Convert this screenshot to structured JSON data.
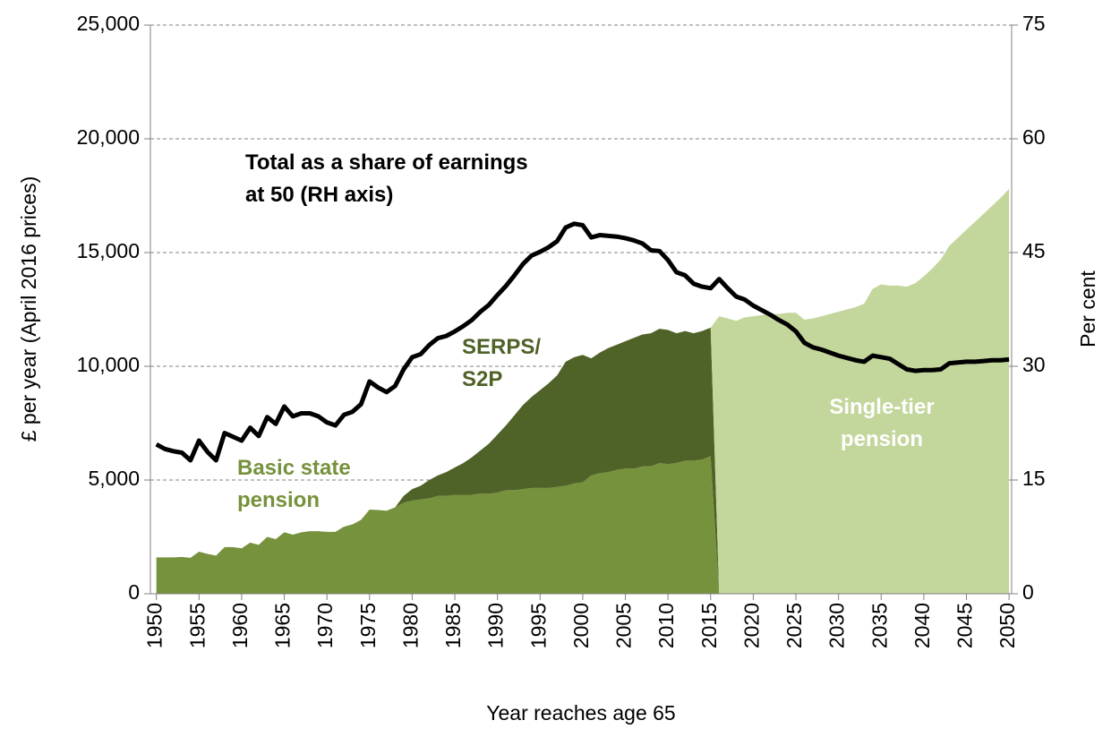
{
  "chart_data": {
    "type": "area",
    "x_label": "Year reaches age 65",
    "y_label": "£ per year (April 2016 prices)",
    "y2_label": "Per cent",
    "x": [
      1950,
      1951,
      1952,
      1953,
      1954,
      1955,
      1956,
      1957,
      1958,
      1959,
      1960,
      1961,
      1962,
      1963,
      1964,
      1965,
      1966,
      1967,
      1968,
      1969,
      1970,
      1971,
      1972,
      1973,
      1974,
      1975,
      1976,
      1977,
      1978,
      1979,
      1980,
      1981,
      1982,
      1983,
      1984,
      1985,
      1986,
      1987,
      1988,
      1989,
      1990,
      1991,
      1992,
      1993,
      1994,
      1995,
      1996,
      1997,
      1998,
      1999,
      2000,
      2001,
      2002,
      2003,
      2004,
      2005,
      2006,
      2007,
      2008,
      2009,
      2010,
      2011,
      2012,
      2013,
      2014,
      2015,
      2016,
      2017,
      2018,
      2019,
      2020,
      2021,
      2022,
      2023,
      2024,
      2025,
      2026,
      2027,
      2028,
      2029,
      2030,
      2031,
      2032,
      2033,
      2034,
      2035,
      2036,
      2037,
      2038,
      2039,
      2040,
      2041,
      2042,
      2043,
      2044,
      2045,
      2046,
      2047,
      2048,
      2049,
      2050
    ],
    "xlim": [
      1949.3,
      2050.3
    ],
    "xticks": [
      1950,
      1955,
      1960,
      1965,
      1970,
      1975,
      1980,
      1985,
      1990,
      1995,
      2000,
      2005,
      2010,
      2015,
      2020,
      2025,
      2030,
      2035,
      2040,
      2045,
      2050
    ],
    "ylim": [
      0,
      25000
    ],
    "yticks": [
      0,
      {
        "value": 5000,
        "label": "5,000"
      },
      {
        "value": 10000,
        "label": "10,000"
      },
      {
        "value": 15000,
        "label": "15,000"
      },
      {
        "value": 20000,
        "label": "20,000"
      },
      {
        "value": 25000,
        "label": "25,000"
      }
    ],
    "y2lim": [
      0,
      75
    ],
    "y2ticks": [
      0,
      15,
      30,
      45,
      60,
      75
    ],
    "grid": true,
    "series": [
      {
        "name": "Basic state pension",
        "color": "#76923c",
        "label_color": "#76923c",
        "values": [
          1600,
          1600,
          1600,
          1620,
          1580,
          1850,
          1750,
          1680,
          2050,
          2050,
          2000,
          2250,
          2150,
          2500,
          2400,
          2700,
          2600,
          2700,
          2750,
          2750,
          2720,
          2720,
          2950,
          3050,
          3250,
          3700,
          3680,
          3650,
          3800,
          4000,
          4100,
          4150,
          4200,
          4300,
          4300,
          4350,
          4350,
          4350,
          4400,
          4400,
          4450,
          4550,
          4550,
          4600,
          4650,
          4650,
          4650,
          4700,
          4750,
          4850,
          4900,
          5200,
          5300,
          5350,
          5450,
          5500,
          5500,
          5600,
          5600,
          5750,
          5700,
          5750,
          5850,
          5850,
          5900,
          6050,
          0,
          0,
          0,
          0,
          0,
          0,
          0,
          0,
          0,
          0,
          0,
          0,
          0,
          0,
          0,
          0,
          0,
          0,
          0,
          0,
          0,
          0,
          0,
          0,
          0,
          0,
          0,
          0,
          0,
          0,
          0,
          0,
          0,
          0,
          0
        ]
      },
      {
        "name": "SERPS/ S2P",
        "color": "#4f6228",
        "label_color": "#4f6228",
        "values": [
          0,
          0,
          0,
          0,
          0,
          0,
          0,
          0,
          0,
          0,
          0,
          0,
          0,
          0,
          0,
          0,
          0,
          0,
          0,
          0,
          0,
          0,
          0,
          0,
          0,
          0,
          0,
          0,
          0,
          300,
          500,
          600,
          800,
          900,
          1050,
          1200,
          1400,
          1650,
          1900,
          2200,
          2550,
          2850,
          3300,
          3700,
          4000,
          4300,
          4600,
          4900,
          5450,
          5550,
          5600,
          5150,
          5300,
          5450,
          5500,
          5600,
          5750,
          5800,
          5850,
          5900,
          5900,
          5700,
          5700,
          5600,
          5650,
          5650,
          0,
          0,
          0,
          0,
          0,
          0,
          0,
          0,
          0,
          0,
          0,
          0,
          0,
          0,
          0,
          0,
          0,
          0,
          0,
          0,
          0,
          0,
          0,
          0,
          0,
          0,
          0,
          0,
          0,
          0,
          0,
          0,
          0,
          0,
          0
        ]
      },
      {
        "name": "Single-tier pension",
        "color": "#c3d69b",
        "label_color": "#ffffff",
        "values": [
          0,
          0,
          0,
          0,
          0,
          0,
          0,
          0,
          0,
          0,
          0,
          0,
          0,
          0,
          0,
          0,
          0,
          0,
          0,
          0,
          0,
          0,
          0,
          0,
          0,
          0,
          0,
          0,
          0,
          0,
          0,
          0,
          0,
          0,
          0,
          0,
          0,
          0,
          0,
          0,
          0,
          0,
          0,
          0,
          0,
          0,
          0,
          0,
          0,
          0,
          0,
          0,
          0,
          0,
          0,
          0,
          0,
          0,
          0,
          0,
          0,
          0,
          0,
          0,
          0,
          0,
          12200,
          12100,
          12000,
          12150,
          12200,
          12250,
          12300,
          12300,
          12350,
          12350,
          12050,
          12100,
          12200,
          12300,
          12400,
          12500,
          12600,
          12750,
          13400,
          13600,
          13550,
          13550,
          13500,
          13650,
          13950,
          14300,
          14700,
          15300,
          15650,
          16000,
          16350,
          16700,
          17050,
          17400,
          17800
        ]
      },
      {
        "name": "Total as a share of earnings at 50 (RH axis)",
        "type": "line",
        "axis": "y2",
        "color": "#000000",
        "label_color": "#000000",
        "values": [
          19.7,
          19.1,
          18.8,
          18.6,
          17.6,
          20.2,
          18.7,
          17.6,
          21.2,
          20.7,
          20.2,
          21.9,
          20.8,
          23.3,
          22.4,
          24.7,
          23.4,
          23.8,
          23.8,
          23.4,
          22.6,
          22.2,
          23.6,
          24.0,
          25.0,
          28.0,
          27.2,
          26.6,
          27.4,
          29.6,
          31.2,
          31.6,
          32.8,
          33.7,
          34.0,
          34.6,
          35.3,
          36.1,
          37.2,
          38.1,
          39.4,
          40.6,
          42.0,
          43.5,
          44.6,
          45.1,
          45.7,
          46.5,
          48.3,
          48.8,
          48.6,
          47.0,
          47.3,
          47.2,
          47.1,
          46.9,
          46.6,
          46.2,
          45.3,
          45.2,
          44.0,
          42.4,
          42.0,
          40.9,
          40.5,
          40.3,
          41.5,
          40.3,
          39.2,
          38.8,
          38.0,
          37.4,
          36.8,
          36.1,
          35.5,
          34.6,
          33.1,
          32.5,
          32.2,
          31.8,
          31.4,
          31.1,
          30.8,
          30.6,
          31.4,
          31.2,
          31.0,
          30.3,
          29.6,
          29.4,
          29.5,
          29.5,
          29.6,
          30.4,
          30.5,
          30.6,
          30.6,
          30.7,
          30.8,
          30.8,
          30.9
        ]
      }
    ]
  }
}
